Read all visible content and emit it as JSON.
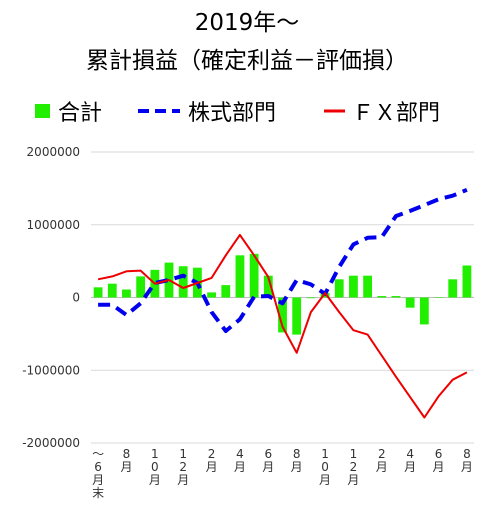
{
  "chart_data": {
    "type": "bar",
    "title_lines": [
      "2019年～",
      "累計損益（確定利益－評価損）"
    ],
    "legend": [
      {
        "name": "合計",
        "kind": "bar",
        "color": "#22ee00"
      },
      {
        "name": "株式部門",
        "kind": "dashed-line",
        "color": "#0000ee"
      },
      {
        "name": "ＦＸ部門",
        "kind": "line",
        "color": "#ee0000"
      }
    ],
    "ylim": [
      -2000000,
      2000000
    ],
    "yticks": [
      "2000000",
      "1000000",
      "0",
      "-1000000",
      "-2000000"
    ],
    "x_labels": [
      {
        "i": 0,
        "text": "～6月末"
      },
      {
        "i": 2,
        "text": "8月"
      },
      {
        "i": 4,
        "text": "10月"
      },
      {
        "i": 6,
        "text": "12月"
      },
      {
        "i": 8,
        "text": "2月"
      },
      {
        "i": 10,
        "text": "4月"
      },
      {
        "i": 12,
        "text": "6月"
      },
      {
        "i": 14,
        "text": "8月"
      },
      {
        "i": 16,
        "text": "10月"
      },
      {
        "i": 18,
        "text": "12月"
      },
      {
        "i": 20,
        "text": "2月"
      },
      {
        "i": 22,
        "text": "4月"
      },
      {
        "i": 24,
        "text": "6月"
      },
      {
        "i": 26,
        "text": "8月"
      }
    ],
    "series": [
      {
        "name": "合計",
        "type": "bar",
        "color": "#22ee00",
        "values": [
          140000,
          190000,
          110000,
          290000,
          380000,
          480000,
          430000,
          410000,
          70000,
          170000,
          580000,
          600000,
          300000,
          -480000,
          -510000,
          -10000,
          60000,
          250000,
          300000,
          300000,
          20000,
          20000,
          -140000,
          -370000,
          0,
          250000,
          440000
        ]
      },
      {
        "name": "株式部門",
        "type": "line",
        "dash": true,
        "color": "#0000ee",
        "values": [
          -100000,
          -100000,
          -240000,
          -80000,
          200000,
          240000,
          300000,
          200000,
          -200000,
          -460000,
          -300000,
          10000,
          20000,
          -80000,
          240000,
          180000,
          50000,
          420000,
          730000,
          820000,
          830000,
          1120000,
          1190000,
          1270000,
          1350000,
          1400000,
          1480000
        ]
      },
      {
        "name": "ＦＸ部門",
        "type": "line",
        "dash": false,
        "color": "#ee0000",
        "values": [
          250000,
          290000,
          360000,
          370000,
          190000,
          240000,
          130000,
          200000,
          270000,
          580000,
          860000,
          580000,
          280000,
          -400000,
          -760000,
          -200000,
          60000,
          -200000,
          -450000,
          -510000,
          -800000,
          -1090000,
          -1370000,
          -1650000,
          -1360000,
          -1130000,
          -1030000
        ]
      }
    ]
  }
}
